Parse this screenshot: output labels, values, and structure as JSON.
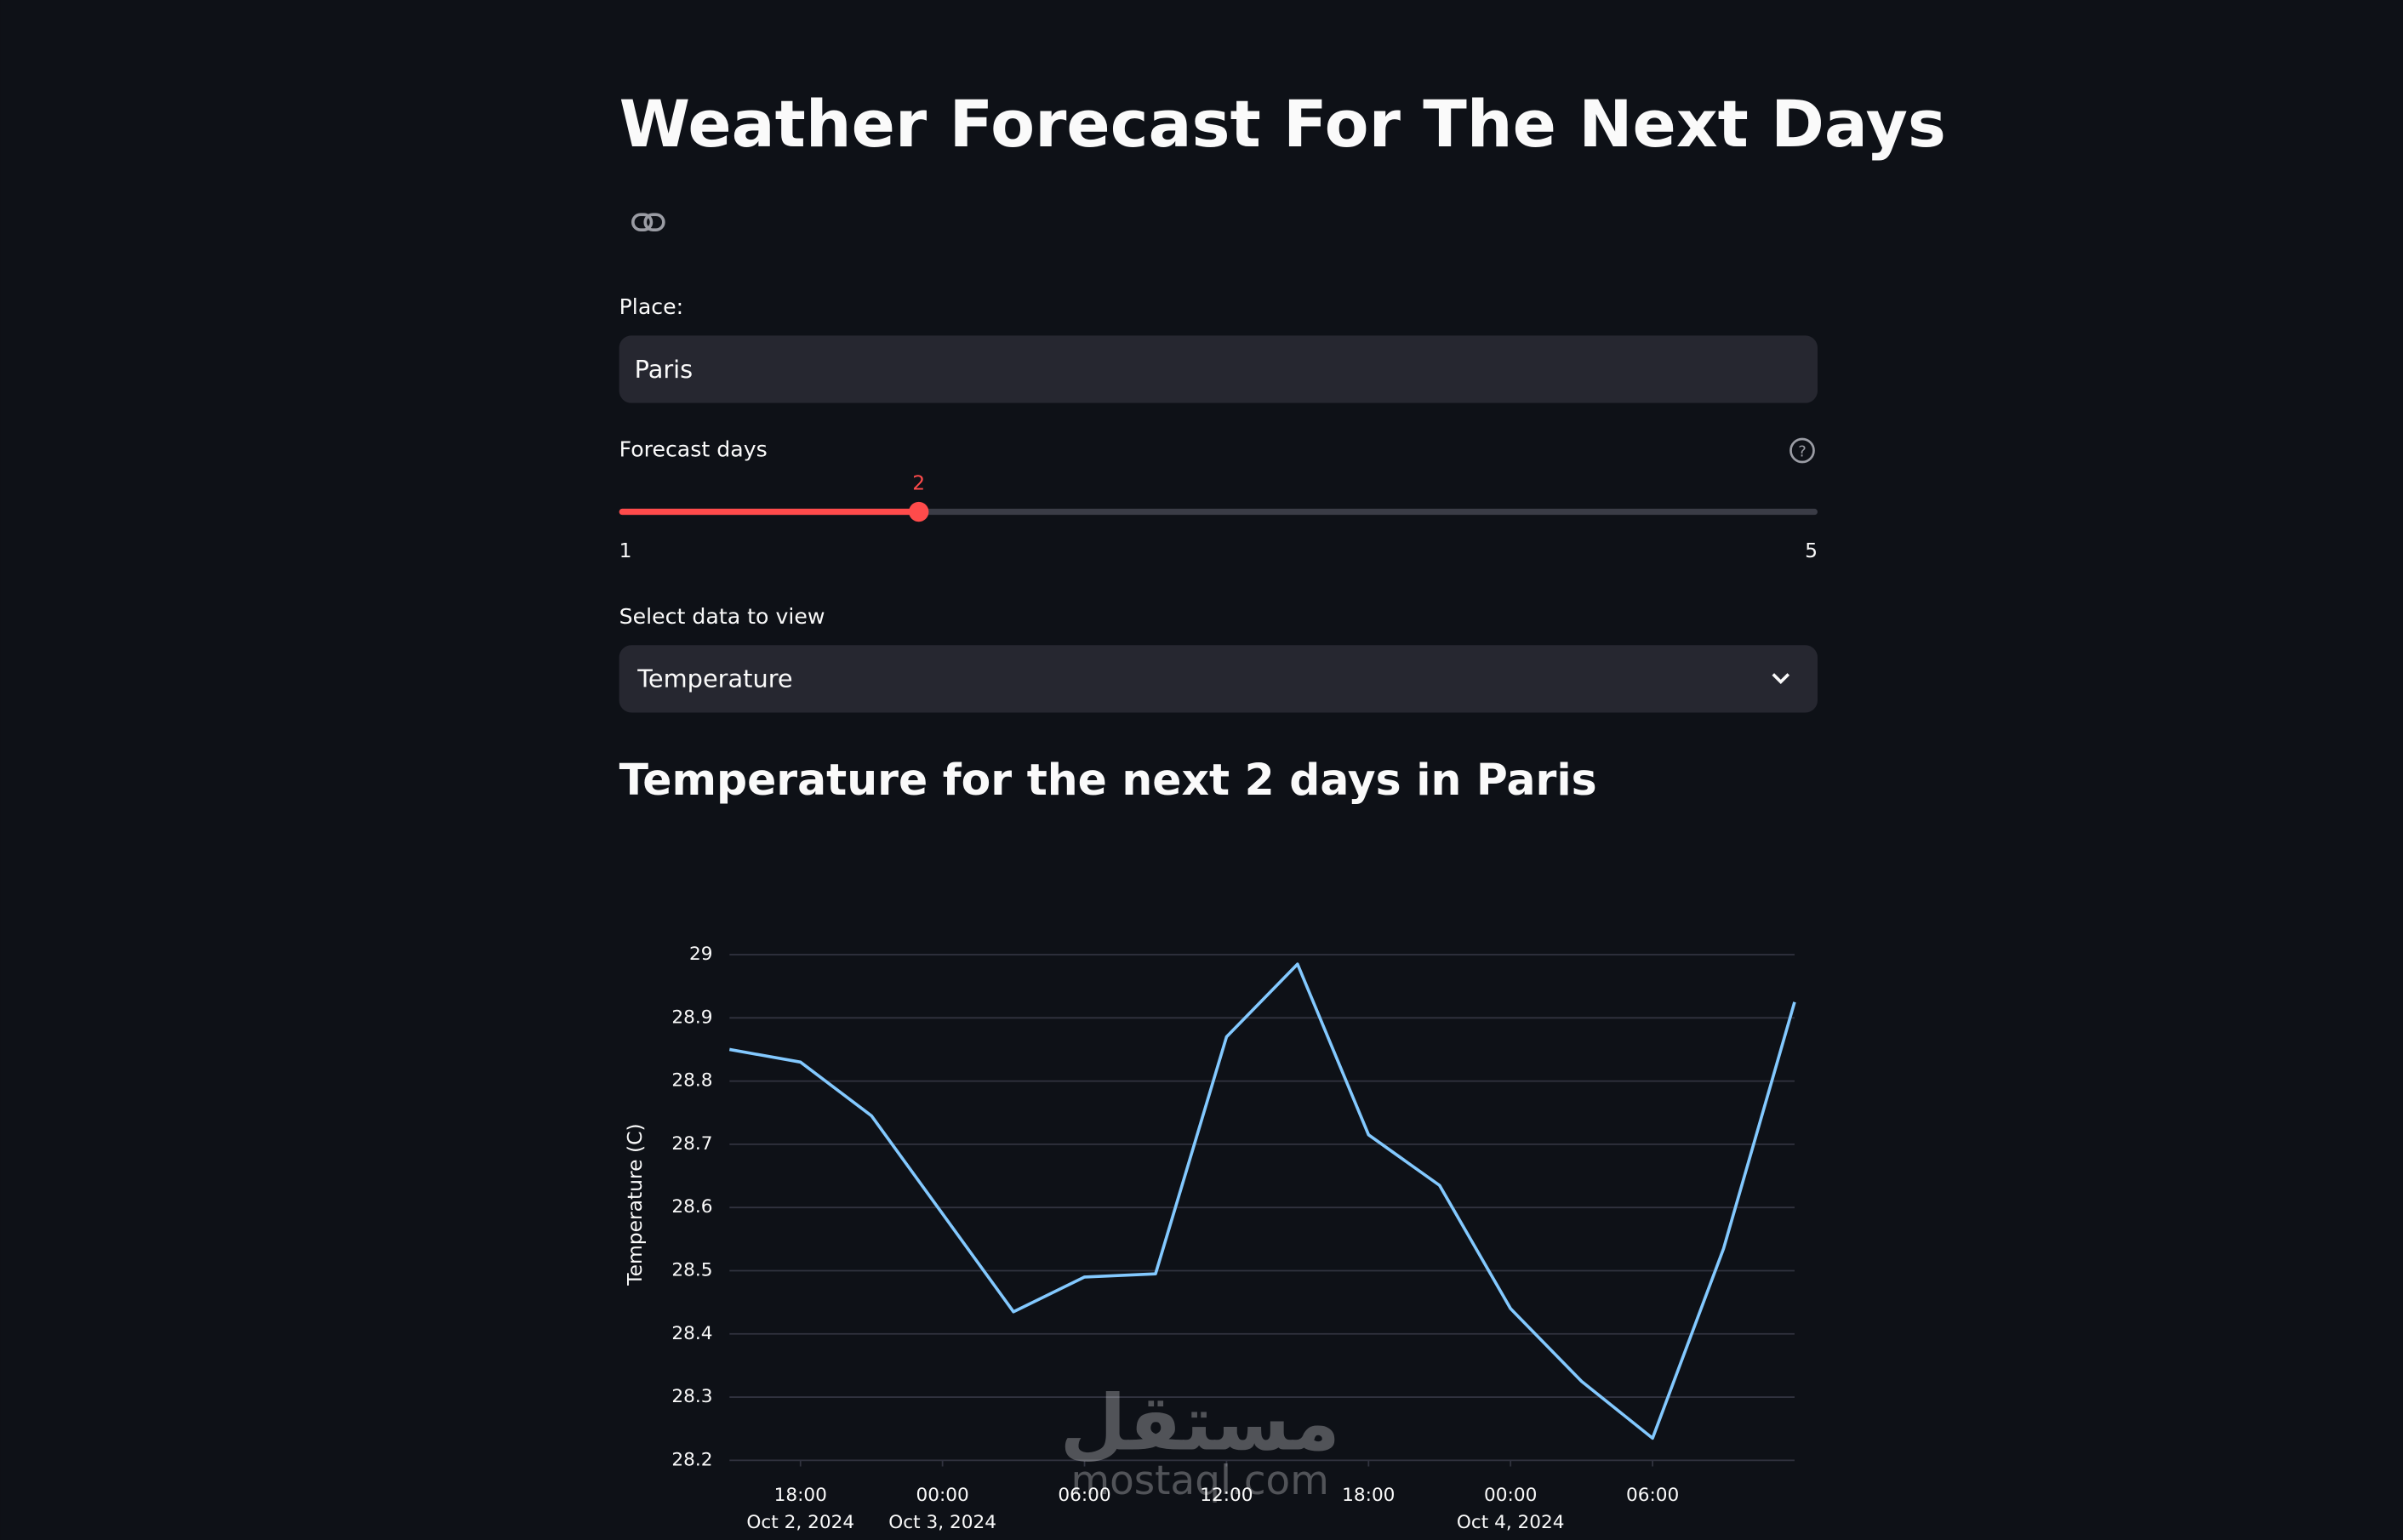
{
  "title": "Weather Forecast For The Next Days",
  "place": {
    "label": "Place:",
    "value": "Paris"
  },
  "slider": {
    "label": "Forecast days",
    "value": 2,
    "min": 1,
    "max": 5
  },
  "select": {
    "label": "Select data to view",
    "value": "Temperature"
  },
  "watermark": [
    "مستقل",
    "mostaql.com"
  ],
  "chart_data": {
    "type": "line",
    "title": "Temperature for the next 2 days in Paris",
    "y_label": "Temperature (C)",
    "x": [
      "2024-10-02T15:00",
      "2024-10-02T18:00",
      "2024-10-02T21:00",
      "2024-10-03T00:00",
      "2024-10-03T03:00",
      "2024-10-03T06:00",
      "2024-10-03T09:00",
      "2024-10-03T12:00",
      "2024-10-03T15:00",
      "2024-10-03T18:00",
      "2024-10-03T21:00",
      "2024-10-04T00:00",
      "2024-10-04T03:00",
      "2024-10-04T06:00",
      "2024-10-04T09:00",
      "2024-10-04T12:00"
    ],
    "series": [
      {
        "name": "Temperature",
        "color": "#83c9ff",
        "values": [
          28.85,
          28.83,
          28.745,
          28.59,
          28.435,
          28.49,
          28.495,
          28.87,
          28.985,
          28.715,
          28.635,
          28.44,
          28.325,
          28.235,
          28.535,
          28.925
        ]
      }
    ],
    "xlim": [
      "2024-10-02T15:00",
      "2024-10-04T12:00"
    ],
    "xticks": [
      {
        "value": "2024-10-02T18:00",
        "label": [
          "18:00",
          "Oct 2, 2024"
        ]
      },
      {
        "value": "2024-10-03T00:00",
        "label": [
          "00:00",
          "Oct 3, 2024"
        ]
      },
      {
        "value": "2024-10-03T06:00",
        "label": [
          "06:00"
        ]
      },
      {
        "value": "2024-10-03T12:00",
        "label": [
          "12:00"
        ]
      },
      {
        "value": "2024-10-03T18:00",
        "label": [
          "18:00"
        ]
      },
      {
        "value": "2024-10-04T00:00",
        "label": [
          "00:00",
          "Oct 4, 2024"
        ]
      },
      {
        "value": "2024-10-04T06:00",
        "label": [
          "06:00"
        ]
      }
    ],
    "ylim": [
      28.2,
      29
    ],
    "yticks": [
      28.2,
      28.3,
      28.4,
      28.5,
      28.6,
      28.7,
      28.8,
      28.9,
      29
    ],
    "grid": true
  }
}
